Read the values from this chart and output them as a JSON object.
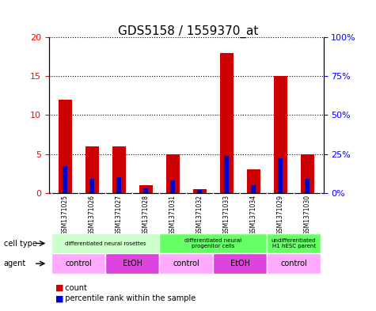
{
  "title": "GDS5158 / 1559370_at",
  "samples": [
    "GSM1371025",
    "GSM1371026",
    "GSM1371027",
    "GSM1371028",
    "GSM1371031",
    "GSM1371032",
    "GSM1371033",
    "GSM1371034",
    "GSM1371029",
    "GSM1371030"
  ],
  "counts": [
    12,
    6,
    6,
    1,
    5,
    0.5,
    18,
    3,
    15,
    5
  ],
  "percentiles": [
    17,
    9,
    10,
    3,
    8,
    2,
    24,
    5,
    22,
    9
  ],
  "ylim_left": [
    0,
    20
  ],
  "ylim_right": [
    0,
    100
  ],
  "yticks_left": [
    0,
    5,
    10,
    15,
    20
  ],
  "yticks_right": [
    0,
    25,
    50,
    75,
    100
  ],
  "ytick_right_labels": [
    "0%",
    "25%",
    "50%",
    "75%",
    "100%"
  ],
  "bar_color": "#cc0000",
  "percentile_color": "#0000cc",
  "cell_type_groups": [
    {
      "label": "differentiated neural rosettes",
      "start": 0,
      "end": 4,
      "color": "#ccffcc"
    },
    {
      "label": "differentiated neural\nprogenitor cells",
      "start": 4,
      "end": 8,
      "color": "#66ff66"
    },
    {
      "label": "undifferentiated\nH1 hESC parent",
      "start": 8,
      "end": 10,
      "color": "#66ff66"
    }
  ],
  "agent_groups": [
    {
      "label": "control",
      "start": 0,
      "end": 2,
      "color": "#ffaaff"
    },
    {
      "label": "EtOH",
      "start": 2,
      "end": 4,
      "color": "#dd44dd"
    },
    {
      "label": "control",
      "start": 4,
      "end": 6,
      "color": "#ffaaff"
    },
    {
      "label": "EtOH",
      "start": 6,
      "end": 8,
      "color": "#dd44dd"
    },
    {
      "label": "control",
      "start": 8,
      "end": 10,
      "color": "#ffaaff"
    }
  ],
  "cell_type_label": "cell type",
  "agent_label": "agent",
  "legend_count_label": "count",
  "legend_percentile_label": "percentile rank within the sample",
  "background_color": "#ffffff",
  "plot_bg": "#ffffff",
  "bar_width": 0.5
}
